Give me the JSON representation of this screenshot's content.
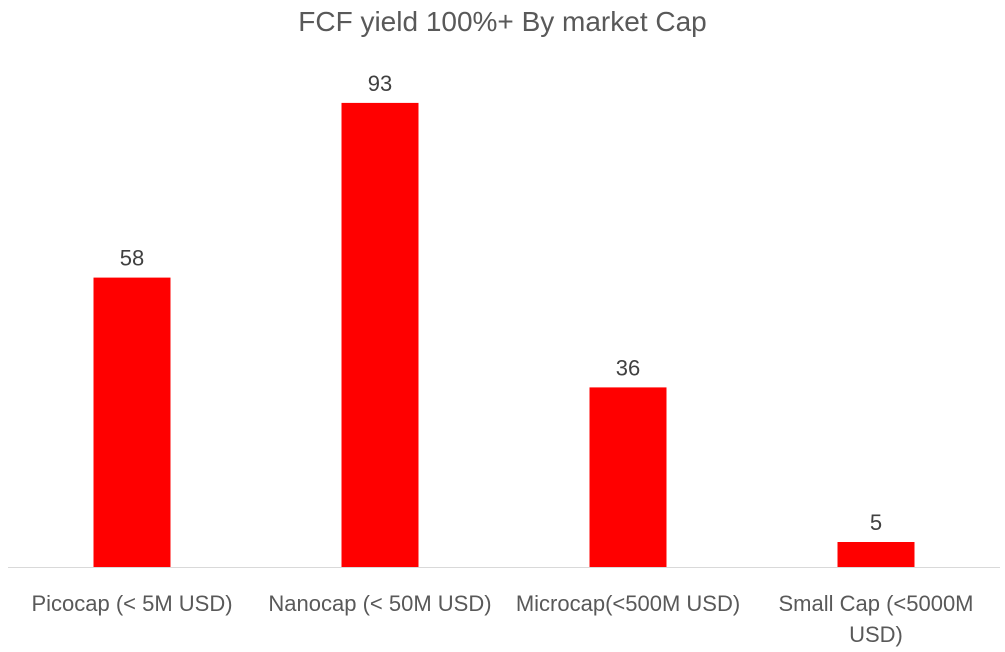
{
  "chart_data": {
    "type": "bar",
    "title": "FCF yield 100%+ By market Cap",
    "xlabel": "",
    "ylabel": "",
    "categories": [
      "Picocap (< 5M USD)",
      "Nanocap (< 50M USD)",
      "Microcap(<500M USD)",
      "Small Cap (<5000M USD)"
    ],
    "series": [
      {
        "values": [
          58,
          93,
          36,
          5
        ]
      }
    ],
    "data_labels": true,
    "grid": false,
    "legend": "none",
    "bar_color": "#FF0000",
    "label_color": "#404040",
    "axis_text_color": "#595959"
  }
}
